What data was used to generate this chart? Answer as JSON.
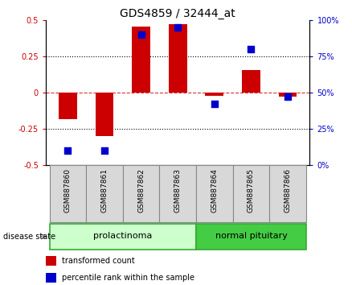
{
  "title": "GDS4859 / 32444_at",
  "samples": [
    "GSM887860",
    "GSM887861",
    "GSM887862",
    "GSM887863",
    "GSM887864",
    "GSM887865",
    "GSM887866"
  ],
  "red_bars": [
    -0.18,
    -0.3,
    0.455,
    0.47,
    -0.022,
    0.155,
    -0.025
  ],
  "blue_dots_pct": [
    10,
    10,
    90,
    95,
    42,
    80,
    47
  ],
  "ylim_left": [
    -0.5,
    0.5
  ],
  "ylim_right": [
    0,
    100
  ],
  "yticks_left": [
    -0.5,
    -0.25,
    0,
    0.25,
    0.5
  ],
  "yticks_right": [
    0,
    25,
    50,
    75,
    100
  ],
  "ytick_labels_left": [
    "-0.5",
    "-0.25",
    "0",
    "0.25",
    "0.5"
  ],
  "ytick_labels_right": [
    "0%",
    "25%",
    "50%",
    "75%",
    "100%"
  ],
  "hlines_dotted": [
    -0.25,
    0.25
  ],
  "bar_color": "#cc0000",
  "dot_color": "#0000cc",
  "bar_width": 0.5,
  "dot_size": 35,
  "group1_label": "prolactinoma",
  "group2_label": "normal pituitary",
  "group1_indices": [
    0,
    1,
    2,
    3
  ],
  "group2_indices": [
    4,
    5,
    6
  ],
  "disease_state_label": "disease state",
  "legend_red": "transformed count",
  "legend_blue": "percentile rank within the sample",
  "group1_color_light": "#ccffcc",
  "group1_color_dark": "#66dd66",
  "group2_color": "#44cc44",
  "xlabel_color_left": "#cc0000",
  "xlabel_color_right": "#0000cc",
  "title_fontsize": 10,
  "tick_fontsize": 7,
  "sample_fontsize": 6.5
}
